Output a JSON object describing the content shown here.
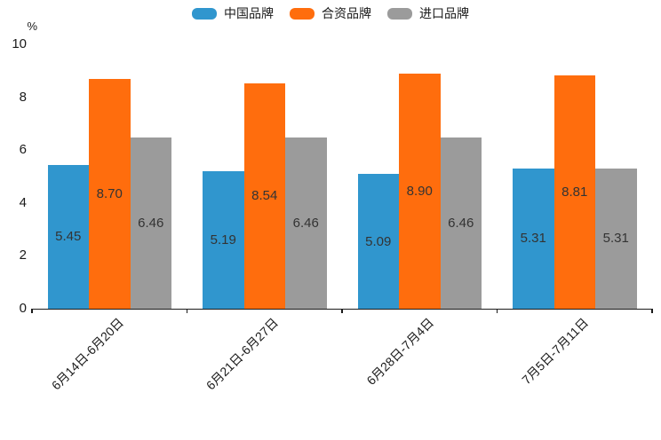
{
  "chart_data": {
    "type": "bar",
    "title": "",
    "unit_label": "%",
    "categories": [
      "6月14日-6月20日",
      "6月21日-6月27日",
      "6月28日-7月4日",
      "7月5日-7月11日"
    ],
    "series": [
      {
        "name": "中国品牌",
        "color": "#3096CE",
        "values": [
          5.45,
          5.19,
          5.09,
          5.31
        ]
      },
      {
        "name": "合资品牌",
        "color": "#FF6D0D",
        "values": [
          8.7,
          8.54,
          8.9,
          8.81
        ]
      },
      {
        "name": "进口品牌",
        "color": "#9B9B9B",
        "values": [
          6.46,
          6.46,
          6.46,
          5.31
        ]
      }
    ],
    "value_label_format": "2-decimals",
    "value_label_position": "centered-inside-bar",
    "ylim": [
      0,
      10
    ],
    "yticks": [
      0,
      2,
      4,
      6,
      8,
      10
    ],
    "grid": false,
    "legend_position": "top-center",
    "xtick_label_rotation_deg": 45,
    "axis_color": "#1a1a1a",
    "value_label_color": "#333333",
    "background_color": "#ffffff"
  }
}
